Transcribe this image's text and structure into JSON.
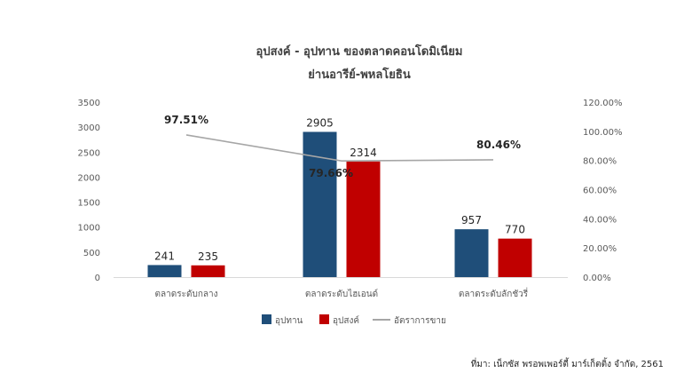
{
  "chart_data": {
    "type": "bar",
    "title": "อุปสงค์ - อุปทาน ของตลาดคอนโดมิเนียม",
    "subtitle": "ย่านอารีย์-พหลโยธิน",
    "categories": [
      "ตลาดระดับกลาง",
      "ตลาดระดับไฮเอนด์",
      "ตลาดระดับลักชัวรี่"
    ],
    "series": [
      {
        "name": "อุปทาน",
        "type": "bar",
        "axis": "left",
        "color": "#1F4E79",
        "values": [
          241,
          2905,
          957
        ]
      },
      {
        "name": "อุปสงค์",
        "type": "bar",
        "axis": "left",
        "color": "#C00000",
        "values": [
          235,
          2314,
          770
        ]
      },
      {
        "name": "อัตราการขาย",
        "type": "line",
        "axis": "right",
        "color": "#A6A6A6",
        "values": [
          97.51,
          79.66,
          80.46
        ]
      }
    ],
    "value_labels": {
      "bars": [
        [
          "241",
          "235"
        ],
        [
          "2905",
          "2314"
        ],
        [
          "957",
          "770"
        ]
      ],
      "line": [
        "97.51%",
        "79.66%",
        "80.46%"
      ]
    },
    "ylim_left": [
      0,
      3500
    ],
    "yticks_left": [
      "0",
      "500",
      "1000",
      "1500",
      "2000",
      "2500",
      "3000",
      "3500"
    ],
    "ylim_right": [
      0,
      120
    ],
    "yticks_right": [
      "0.00%",
      "20.00%",
      "40.00%",
      "60.00%",
      "80.00%",
      "100.00%",
      "120.00%"
    ],
    "grid": false,
    "legend_position": "bottom"
  },
  "source_text": "ที่มา: เน็กซัส พรอพเพอร์ตี้ มาร์เก็ตติ้ง จำกัด, 2561"
}
